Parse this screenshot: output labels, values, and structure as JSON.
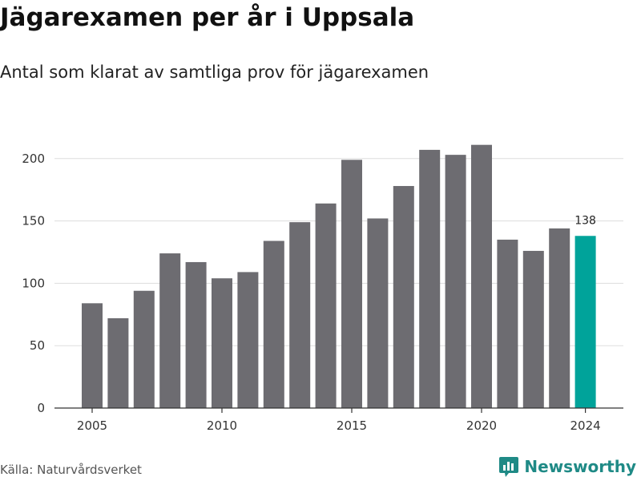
{
  "chart_data": {
    "type": "bar",
    "title": "Jägarexamen per år i Uppsala",
    "subtitle": "Antal som klarat av samtliga prov för jägarexamen",
    "categories": [
      "2005",
      "2006",
      "2007",
      "2008",
      "2009",
      "2010",
      "2011",
      "2012",
      "2013",
      "2014",
      "2015",
      "2016",
      "2017",
      "2018",
      "2019",
      "2020",
      "2021",
      "2022",
      "2023",
      "2024"
    ],
    "values": [
      84,
      72,
      94,
      124,
      117,
      104,
      109,
      134,
      149,
      164,
      199,
      152,
      178,
      207,
      203,
      211,
      135,
      126,
      144,
      138
    ],
    "x_tick_labels": [
      "2005",
      "2010",
      "2015",
      "2020",
      "2024"
    ],
    "y_tick_labels": [
      "0",
      "50",
      "100",
      "150",
      "200"
    ],
    "ylim": [
      0,
      220
    ],
    "grid": "horizontal",
    "highlight": {
      "category": "2024",
      "label": "138"
    },
    "colors": {
      "bar": "#6d6c71",
      "highlight": "#00a39a",
      "grid": "#dddddd"
    }
  },
  "footer": {
    "source": "Källa: Naturvårdsverket",
    "brand": "Newsworthy",
    "brand_icon": "newsworthy-logo-icon"
  }
}
